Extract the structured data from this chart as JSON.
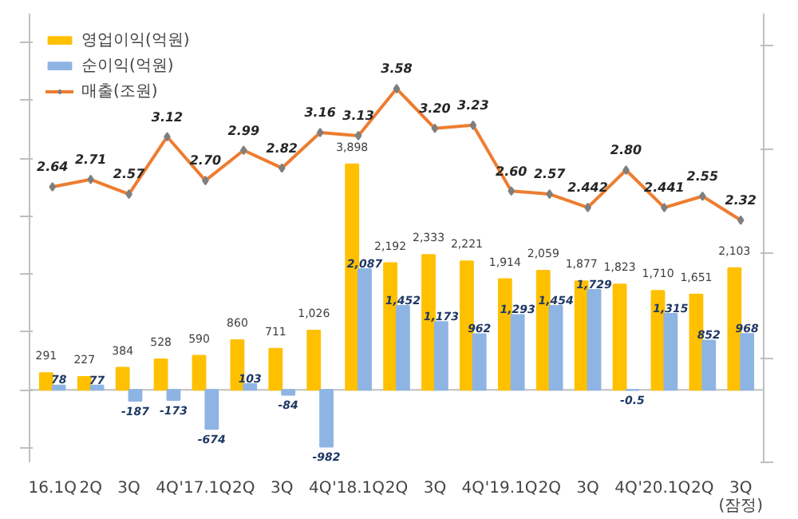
{
  "chart_data": {
    "type": "bar",
    "categories": [
      "16.1Q",
      "2Q",
      "3Q",
      "4Q",
      "'17.1Q",
      "2Q",
      "3Q",
      "4Q",
      "'18.1Q",
      "2Q",
      "3Q",
      "4Q",
      "'19.1Q",
      "2Q",
      "3Q",
      "4Q",
      "'20.1Q",
      "2Q",
      "3Q(잠정)"
    ],
    "series": [
      {
        "name": "영업이익(억원)",
        "color": "#ffc000",
        "values": [
          291,
          227,
          384,
          528,
          590,
          860,
          711,
          1026,
          3898,
          2192,
          2333,
          2221,
          1914,
          2059,
          1877,
          1823,
          1710,
          1651,
          2103
        ],
        "value_labels": [
          "291",
          "227",
          "384",
          "528",
          "590",
          "860",
          "711",
          "1,026",
          "3,898",
          "2,192",
          "2,333",
          "2,221",
          "1,914",
          "2,059",
          "1,877",
          "1,823",
          "1,710",
          "1,651",
          "2,103"
        ]
      },
      {
        "name": "순이익(억원)",
        "color": "#8eb4e3",
        "values": [
          78,
          77,
          -187,
          -173,
          -674,
          103,
          -84,
          -982,
          2087,
          1452,
          1173,
          962,
          1293,
          1454,
          1729,
          -0.5,
          1315,
          852,
          968
        ],
        "value_labels": [
          "78",
          "77",
          "-187",
          "-173",
          "-674",
          "103",
          "-84",
          "-982",
          "2,087",
          "1,452",
          "1,173",
          "962",
          "1,293",
          "1,454",
          "1,729",
          "-0.5",
          "1,315",
          "852",
          "968"
        ]
      },
      {
        "name": "매출(조원)",
        "type": "line",
        "axis": "y2",
        "color": "#ed7d31",
        "marker": "diamond",
        "values": [
          2.64,
          2.71,
          2.57,
          3.12,
          2.7,
          2.99,
          2.82,
          3.16,
          3.13,
          3.58,
          3.2,
          3.23,
          2.6,
          2.57,
          2.442,
          2.8,
          2.441,
          2.55,
          2.32
        ],
        "value_labels": [
          "2.64",
          "2.71",
          "2.57",
          "3.12",
          "2.70",
          "2.99",
          "2.82",
          "3.16",
          "3.13",
          "3.58",
          "3.20",
          "3.23",
          "2.60",
          "2.57",
          "2.442",
          "2.80",
          "2.441",
          "2.55",
          "2.32"
        ]
      }
    ],
    "ylim": [
      -1250,
      6500
    ],
    "y2lim": [
      0,
      4.3
    ],
    "tick_labels": "x",
    "legend": "top left",
    "grid": false
  }
}
